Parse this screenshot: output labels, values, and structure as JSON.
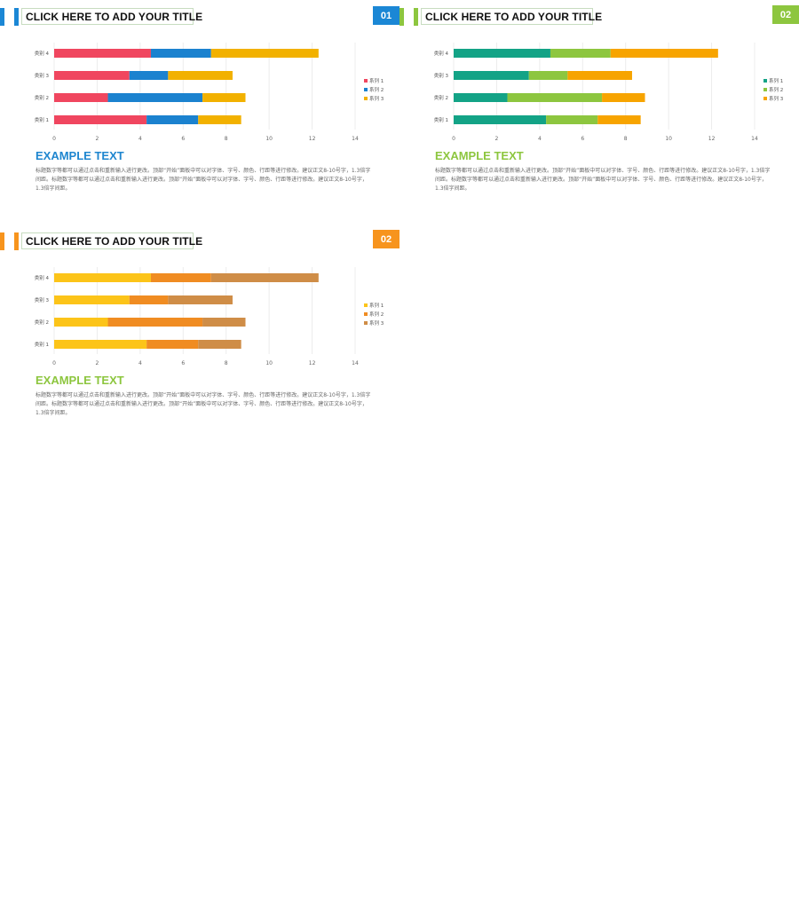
{
  "panels": [
    {
      "title": "CLICK HERE TO ADD YOUR TITLE",
      "badge": "",
      "accent_colors": [
        "#1b87d5",
        "#1b87d5"
      ],
      "heading": "EXAMPLE TEXT",
      "heading_color": "#1f86cf",
      "body": "标题数字等都可以通过点击和重新输入进行更改。顶部“开始”面板中可以对字体、字号、颜色、行距等进行修改。建议正文8-10号字，1.3倍字间距。标题数字等都可以通过点击和重新输入进行更改。顶部“开始”面板中可以对字体、字号、颜色、行距等进行修改。建议正文8-10号字，1.3倍字间距。"
    },
    {
      "title": "CLICK HERE TO ADD YOUR TITLE",
      "badge": "01",
      "badge_color": "#1b87d5",
      "accent_colors": [
        "#8dc63f",
        "#8dc63f"
      ],
      "heading": "EXAMPLE TEXT",
      "heading_color": "#8dc63f",
      "body": "标题数字等都可以通过点击和重新输入进行更改。顶部“开始”面板中可以对字体、字号、颜色、行距等进行修改。建议正文8-10号字，1.3倍字间距。标题数字等都可以通过点击和重新输入进行更改。顶部“开始”面板中可以对字体、字号、颜色、行距等进行修改。建议正文8-10号字，1.3倍字间距。"
    },
    {
      "title": "CLICK HERE TO ADD YOUR TITLE",
      "badge": "02",
      "badge_color": "#f7941d",
      "accent_colors": [
        "#f7941d",
        "#f7941d"
      ],
      "heading": "EXAMPLE TEXT",
      "heading_color": "#8dc63f",
      "body": "标题数字等都可以通过点击和重新输入进行更改。顶部“开始”面板中可以对字体、字号、颜色、行距等进行修改。建议正文8-10号字，1.3倍字间距。标题数字等都可以通过点击和重新输入进行更改。顶部“开始”面板中可以对字体、字号、颜色、行距等进行修改。建议正文8-10号字，1.3倍字间距。"
    }
  ],
  "corner_badge": {
    "label": "02",
    "color": "#8dc63f"
  },
  "chart_data": [
    {
      "type": "bar",
      "orientation": "horizontal",
      "stacked": true,
      "categories": [
        "类别 1",
        "类别 2",
        "类别 3",
        "类别 4"
      ],
      "series": [
        {
          "name": "系列 1",
          "values": [
            4.3,
            2.5,
            3.5,
            4.5
          ],
          "color": "#f0465f"
        },
        {
          "name": "系列 2",
          "values": [
            2.4,
            4.4,
            1.8,
            2.8
          ],
          "color": "#1b82cf"
        },
        {
          "name": "系列 3",
          "values": [
            2.0,
            2.0,
            3.0,
            5.0
          ],
          "color": "#f2b100"
        }
      ],
      "xlim": [
        0,
        14
      ],
      "xticks": [
        0,
        2,
        4,
        6,
        8,
        10,
        12,
        14
      ],
      "grid": true,
      "legend": "right"
    },
    {
      "type": "bar",
      "orientation": "horizontal",
      "stacked": true,
      "categories": [
        "类别 1",
        "类别 2",
        "类别 3",
        "类别 4"
      ],
      "series": [
        {
          "name": "系列 1",
          "values": [
            4.3,
            2.5,
            3.5,
            4.5
          ],
          "color": "#13a386"
        },
        {
          "name": "系列 2",
          "values": [
            2.4,
            4.4,
            1.8,
            2.8
          ],
          "color": "#8dc63f"
        },
        {
          "name": "系列 3",
          "values": [
            2.0,
            2.0,
            3.0,
            5.0
          ],
          "color": "#f7a400"
        }
      ],
      "xlim": [
        0,
        14
      ],
      "xticks": [
        0,
        2,
        4,
        6,
        8,
        10,
        12,
        14
      ],
      "grid": true,
      "legend": "right"
    },
    {
      "type": "bar",
      "orientation": "horizontal",
      "stacked": true,
      "categories": [
        "类别 1",
        "类别 2",
        "类别 3",
        "类别 4"
      ],
      "series": [
        {
          "name": "系列 1",
          "values": [
            4.3,
            2.5,
            3.5,
            4.5
          ],
          "color": "#fcc419"
        },
        {
          "name": "系列 2",
          "values": [
            2.4,
            4.4,
            1.8,
            2.8
          ],
          "color": "#f08c22"
        },
        {
          "name": "系列 3",
          "values": [
            2.0,
            2.0,
            3.0,
            5.0
          ],
          "color": "#cf8d47"
        }
      ],
      "xlim": [
        0,
        14
      ],
      "xticks": [
        0,
        2,
        4,
        6,
        8,
        10,
        12,
        14
      ],
      "grid": true,
      "legend": "right"
    }
  ]
}
